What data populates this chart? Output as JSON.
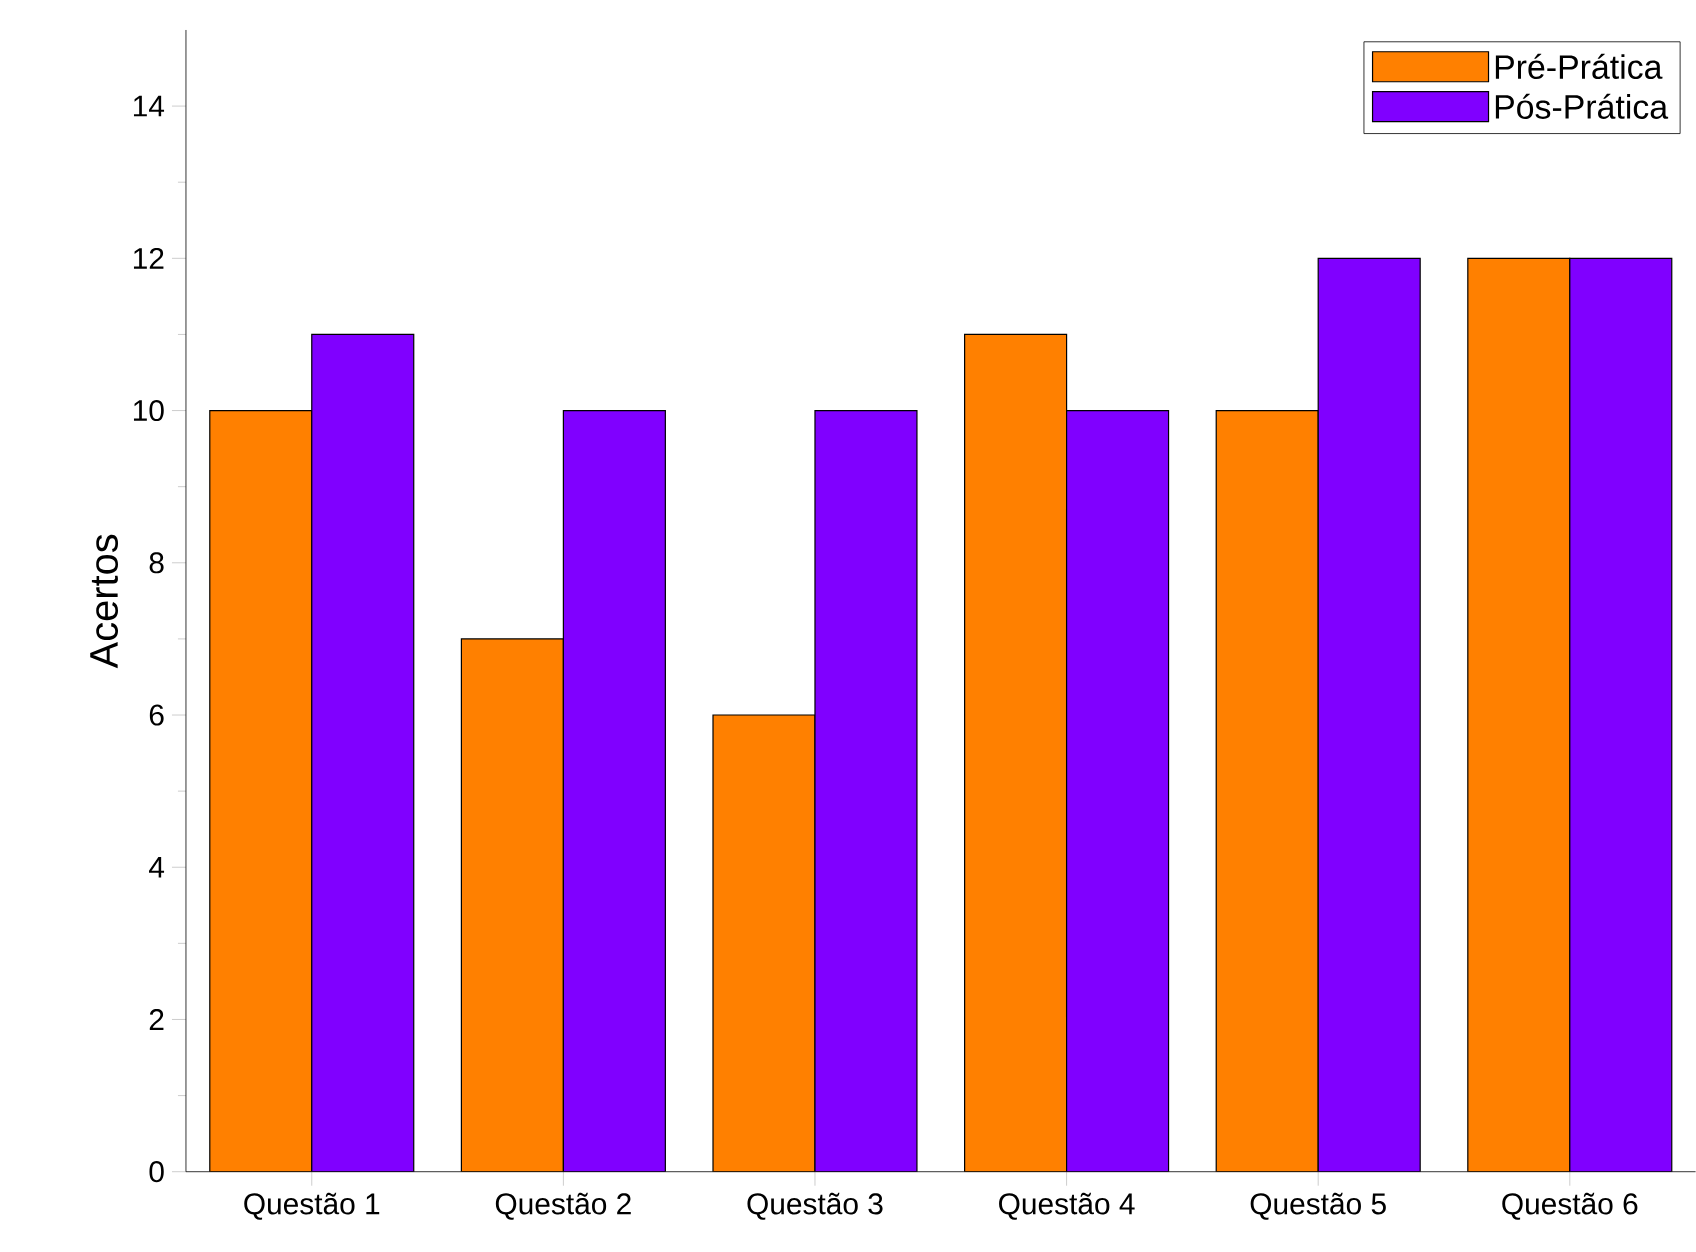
{
  "chart_data": {
    "type": "bar",
    "categories": [
      "Questão 1",
      "Questão 2",
      "Questão 3",
      "Questão 4",
      "Questão 5",
      "Questão 6"
    ],
    "series": [
      {
        "name": "Pré-Prática",
        "color": "#ff8000",
        "values": [
          10,
          7,
          6,
          11,
          10,
          12
        ]
      },
      {
        "name": "Pós-Prática",
        "color": "#8000ff",
        "values": [
          11,
          10,
          10,
          10,
          12,
          12
        ]
      }
    ],
    "ylabel": "Acertos",
    "ylim": [
      0,
      15
    ],
    "yticks": [
      0,
      2,
      4,
      6,
      8,
      10,
      12,
      14
    ],
    "legend": "top right"
  }
}
